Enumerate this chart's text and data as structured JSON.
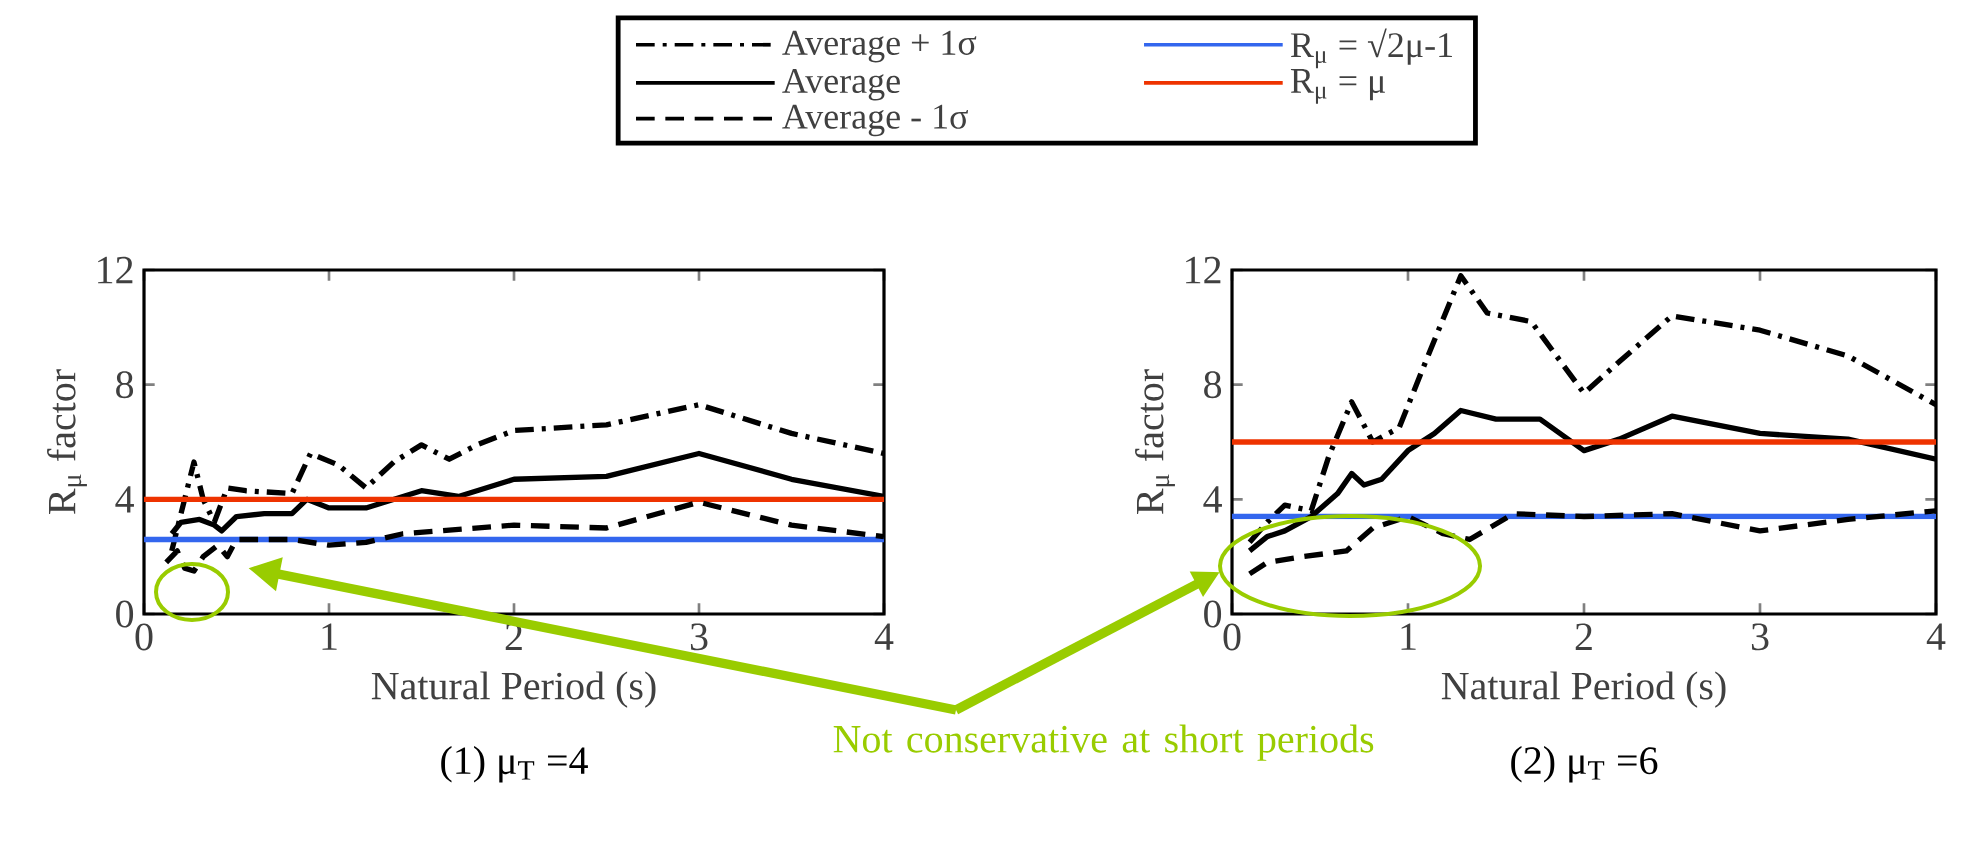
{
  "chart_data": [
    {
      "type": "line",
      "title": "(1)  μ$_{T}$ =4",
      "xlabel": "Natural Period (s)",
      "ylabel": "R$_{μ}$  factor",
      "xlim": [
        0,
        4
      ],
      "ylim": [
        0,
        12
      ],
      "xticks": [
        0,
        1,
        2,
        3,
        4
      ],
      "yticks": [
        0,
        4,
        8,
        12
      ],
      "legend": "top",
      "annotations": [
        "Not conservative at short periods"
      ],
      "series": [
        {
          "name": "Average + 1σ",
          "color": "#000000",
          "line_style": "dashdot",
          "x": [
            0.15,
            0.2,
            0.27,
            0.32,
            0.38,
            0.45,
            0.55,
            0.8,
            0.9,
            1.05,
            1.2,
            1.35,
            1.5,
            1.65,
            1.8,
            2.0,
            2.5,
            3.0,
            3.5,
            4.0
          ],
          "values": [
            2.2,
            3.5,
            5.3,
            4.0,
            3.2,
            4.4,
            4.3,
            4.2,
            5.6,
            5.2,
            4.4,
            5.3,
            5.9,
            5.4,
            5.9,
            6.4,
            6.6,
            7.3,
            6.3,
            5.6
          ]
        },
        {
          "name": "Average",
          "color": "#000000",
          "line_style": "solid",
          "x": [
            0.15,
            0.2,
            0.3,
            0.38,
            0.42,
            0.5,
            0.65,
            0.8,
            0.88,
            1.0,
            1.2,
            1.4,
            1.5,
            1.7,
            2.0,
            2.5,
            3.0,
            3.5,
            4.0
          ],
          "values": [
            2.8,
            3.2,
            3.3,
            3.1,
            2.9,
            3.4,
            3.5,
            3.5,
            4.0,
            3.7,
            3.7,
            4.1,
            4.3,
            4.1,
            4.7,
            4.8,
            5.6,
            4.7,
            4.1
          ]
        },
        {
          "name": "Average - 1σ",
          "color": "#000000",
          "line_style": "dashed",
          "x": [
            0.12,
            0.18,
            0.22,
            0.27,
            0.32,
            0.4,
            0.45,
            0.5,
            0.8,
            1.0,
            1.2,
            1.4,
            2.0,
            2.5,
            3.0,
            3.5,
            4.0
          ],
          "values": [
            1.8,
            2.2,
            1.6,
            1.5,
            2.0,
            2.4,
            2.0,
            2.6,
            2.6,
            2.4,
            2.5,
            2.8,
            3.1,
            3.0,
            3.9,
            3.1,
            2.7
          ]
        },
        {
          "name": "R$_{μ}$ = √2μ-1",
          "color": "#3366ee",
          "line_style": "solid",
          "x": [
            0,
            4
          ],
          "values": [
            2.6,
            2.6
          ]
        },
        {
          "name": "R$_{μ}$ =   μ",
          "color": "#ee3300",
          "line_style": "solid",
          "x": [
            0,
            4
          ],
          "values": [
            4,
            4
          ]
        }
      ]
    },
    {
      "type": "line",
      "title": "(2)  μ$_{T}$ =6",
      "xlabel": "Natural Period (s)",
      "ylabel": "R$_{μ}$  factor",
      "xlim": [
        0,
        4
      ],
      "ylim": [
        0,
        12
      ],
      "xticks": [
        0,
        1,
        2,
        3,
        4
      ],
      "yticks": [
        0,
        4,
        8,
        12
      ],
      "series": [
        {
          "color": "#000000",
          "line_style": "dashdot",
          "x": [
            0.1,
            0.2,
            0.3,
            0.45,
            0.55,
            0.68,
            0.8,
            0.95,
            1.1,
            1.3,
            1.45,
            1.7,
            2.0,
            2.2,
            2.5,
            3.0,
            3.5,
            4.0
          ],
          "values": [
            2.5,
            3.2,
            3.8,
            3.6,
            5.5,
            7.4,
            6.0,
            6.5,
            8.8,
            11.8,
            10.5,
            10.2,
            7.7,
            8.8,
            10.4,
            9.9,
            9.0,
            7.3
          ]
        },
        {
          "color": "#000000",
          "line_style": "solid",
          "x": [
            0.1,
            0.2,
            0.3,
            0.45,
            0.6,
            0.68,
            0.75,
            0.85,
            1.0,
            1.15,
            1.3,
            1.5,
            1.75,
            2.0,
            2.2,
            2.5,
            3.0,
            3.5,
            4.0
          ],
          "values": [
            2.2,
            2.7,
            2.9,
            3.4,
            4.2,
            4.9,
            4.5,
            4.7,
            5.7,
            6.3,
            7.1,
            6.8,
            6.8,
            5.7,
            6.1,
            6.9,
            6.3,
            6.1,
            5.4
          ]
        },
        {
          "color": "#000000",
          "line_style": "dashed",
          "x": [
            0.1,
            0.2,
            0.4,
            0.65,
            0.8,
            1.0,
            1.2,
            1.35,
            1.6,
            2.0,
            2.5,
            3.0,
            3.5,
            4.0
          ],
          "values": [
            1.4,
            1.8,
            2.0,
            2.2,
            3.0,
            3.4,
            2.8,
            2.6,
            3.5,
            3.4,
            3.5,
            2.9,
            3.3,
            3.6
          ]
        },
        {
          "color": "#3366ee",
          "line_style": "solid",
          "x": [
            0,
            4
          ],
          "values": [
            3.4,
            3.4
          ]
        },
        {
          "color": "#ee3300",
          "line_style": "solid",
          "x": [
            0,
            4
          ],
          "values": [
            6,
            6
          ]
        }
      ]
    }
  ]
}
